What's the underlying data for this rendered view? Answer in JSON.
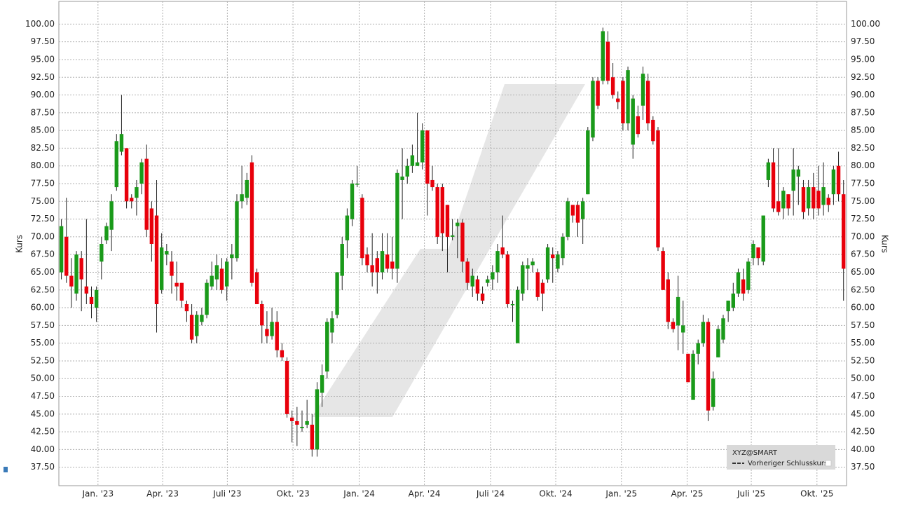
{
  "chart_data": {
    "type": "candlestick",
    "y_label": "Kurs",
    "legend": {
      "symbol": "XYZ@SMART",
      "line_label": "Vorheriger Schlusskurs",
      "position": "lower right"
    },
    "up_color": "#1a9a1a",
    "down_color": "#e8000b",
    "grid": true,
    "ylim": [
      34.9,
      103.2
    ],
    "yticks": [
      {
        "value": 37.5,
        "label": "37.50"
      },
      {
        "value": 40,
        "label": "40.00"
      },
      {
        "value": 42.5,
        "label": "42.50"
      },
      {
        "value": 45,
        "label": "45.00"
      },
      {
        "value": 47.5,
        "label": "47.50"
      },
      {
        "value": 50,
        "label": "50.00"
      },
      {
        "value": 52.5,
        "label": "52.50"
      },
      {
        "value": 55,
        "label": "55.00"
      },
      {
        "value": 57.5,
        "label": "57.50"
      },
      {
        "value": 60,
        "label": "60.00"
      },
      {
        "value": 62.5,
        "label": "62.50"
      },
      {
        "value": 65,
        "label": "65.00"
      },
      {
        "value": 67.5,
        "label": "67.50"
      },
      {
        "value": 70,
        "label": "70.00"
      },
      {
        "value": 72.5,
        "label": "72.50"
      },
      {
        "value": 75,
        "label": "75.00"
      },
      {
        "value": 77.5,
        "label": "77.50"
      },
      {
        "value": 80,
        "label": "80.00"
      },
      {
        "value": 82.5,
        "label": "82.50"
      },
      {
        "value": 85,
        "label": "85.00"
      },
      {
        "value": 87.5,
        "label": "87.50"
      },
      {
        "value": 90,
        "label": "90.00"
      },
      {
        "value": 92.5,
        "label": "92.50"
      },
      {
        "value": 95,
        "label": "95.00"
      },
      {
        "value": 97.5,
        "label": "97.50"
      },
      {
        "value": 100,
        "label": "100.00"
      }
    ],
    "xlim": [
      -0.5,
      156.6
    ],
    "xticks": [
      {
        "value": 7.3,
        "label": "Jan. '23"
      },
      {
        "value": 20.2,
        "label": "Apr. '23"
      },
      {
        "value": 33.1,
        "label": "Juli '23"
      },
      {
        "value": 46.2,
        "label": "Okt. '23"
      },
      {
        "value": 59.4,
        "label": "Jan. '24"
      },
      {
        "value": 72.4,
        "label": "Apr. '24"
      },
      {
        "value": 85.6,
        "label": "Juli '24"
      },
      {
        "value": 98.6,
        "label": "Okt. '24"
      },
      {
        "value": 111.7,
        "label": "Jan. '25"
      },
      {
        "value": 124.8,
        "label": "Apr. '25"
      },
      {
        "value": 137.6,
        "label": "Juli '25"
      },
      {
        "value": 150.7,
        "label": "Okt. '25"
      }
    ],
    "ohlc": [
      [
        65,
        72.5,
        64,
        71.5
      ],
      [
        70,
        75.5,
        63.5,
        64.5
      ],
      [
        64.5,
        67,
        60,
        63
      ],
      [
        62,
        68,
        61,
        67.5
      ],
      [
        67,
        68,
        59.5,
        64
      ],
      [
        63,
        72.5,
        60.5,
        62
      ],
      [
        61.5,
        63,
        58.5,
        60.5
      ],
      [
        60,
        63,
        58,
        62.5
      ],
      [
        66.5,
        70,
        64,
        69
      ],
      [
        69.5,
        72,
        69,
        71.5
      ],
      [
        71,
        76,
        68,
        75
      ],
      [
        77,
        84.5,
        76.5,
        83.5
      ],
      [
        82,
        90,
        81.5,
        84.5
      ],
      [
        82.5,
        82.5,
        74,
        75
      ],
      [
        75.5,
        76,
        74,
        75
      ],
      [
        75.5,
        78,
        73,
        77
      ],
      [
        77.5,
        81,
        76,
        80.5
      ],
      [
        81,
        83,
        70,
        71
      ],
      [
        74,
        75,
        66.5,
        69
      ],
      [
        73,
        78,
        56.5,
        60.5
      ],
      [
        62.5,
        70.5,
        62,
        68.5
      ],
      [
        67.5,
        69,
        66,
        68
      ],
      [
        66.5,
        68,
        62,
        64.5
      ],
      [
        63.5,
        66.5,
        61,
        63
      ],
      [
        63.5,
        63.5,
        60,
        61
      ],
      [
        60.5,
        61,
        58,
        59.5
      ],
      [
        59,
        60.5,
        55,
        55.5
      ],
      [
        56,
        59.5,
        55,
        59
      ],
      [
        58,
        60,
        57.5,
        59
      ],
      [
        59,
        64,
        58.5,
        63.5
      ],
      [
        63,
        66.5,
        62.5,
        64.5
      ],
      [
        64,
        67.5,
        62.5,
        66
      ],
      [
        65.5,
        67,
        62,
        62.5
      ],
      [
        63,
        67,
        61,
        66.5
      ],
      [
        67,
        69,
        64,
        67.5
      ],
      [
        67,
        76,
        66.5,
        75
      ],
      [
        75,
        80,
        74,
        76
      ],
      [
        75.5,
        79,
        74.5,
        78
      ],
      [
        80.5,
        81.5,
        63,
        63.5
      ],
      [
        65,
        65.5,
        60.5,
        60.5
      ],
      [
        60.5,
        61,
        55,
        57.5
      ],
      [
        57,
        59.5,
        55,
        56
      ],
      [
        56,
        60,
        55.5,
        58
      ],
      [
        58,
        59.5,
        53,
        54
      ],
      [
        54,
        55,
        52.5,
        53
      ],
      [
        52.5,
        53,
        44.5,
        45
      ],
      [
        44.5,
        45.5,
        41,
        44
      ],
      [
        44,
        46,
        40.5,
        43.5
      ],
      [
        43,
        45.5,
        42.5,
        43.2
      ],
      [
        43.5,
        47,
        43,
        44
      ],
      [
        43.5,
        45,
        39,
        40
      ],
      [
        40,
        49.5,
        39,
        48.5
      ],
      [
        48,
        52,
        46,
        50.5
      ],
      [
        51,
        58.5,
        50,
        58
      ],
      [
        56.5,
        59.5,
        55,
        58.5
      ],
      [
        59,
        65,
        58.5,
        65
      ],
      [
        64.5,
        70,
        62.5,
        69
      ],
      [
        69.5,
        74,
        67,
        73
      ],
      [
        72.5,
        78,
        71.5,
        77.5
      ],
      [
        77.5,
        80,
        77,
        77.5
      ],
      [
        75.5,
        76,
        66,
        67
      ],
      [
        67.5,
        68.5,
        65,
        66
      ],
      [
        66,
        70.5,
        63,
        65
      ],
      [
        67,
        68,
        62,
        65
      ],
      [
        65,
        70.5,
        64,
        68
      ],
      [
        67.5,
        70.5,
        65,
        65.5
      ],
      [
        66.5,
        70,
        64,
        65.5
      ],
      [
        65.5,
        79.5,
        63.5,
        79
      ],
      [
        78,
        82.5,
        72.5,
        78.5
      ],
      [
        78.5,
        81,
        77.5,
        80
      ],
      [
        80,
        83,
        79,
        81.5
      ],
      [
        80,
        87.5,
        80,
        80.5
      ],
      [
        80.5,
        86,
        79.5,
        85
      ],
      [
        85,
        85,
        73,
        77.5
      ],
      [
        78,
        80,
        76.5,
        77
      ],
      [
        77,
        77.5,
        69,
        70
      ],
      [
        77,
        77.5,
        68,
        70.5
      ],
      [
        74.5,
        74.5,
        65,
        70
      ],
      [
        70,
        72.5,
        69.5,
        70.2
      ],
      [
        71.5,
        72.5,
        67,
        72
      ],
      [
        72,
        72.5,
        65,
        66.5
      ],
      [
        66.5,
        67,
        62.5,
        63.5
      ],
      [
        63,
        65.5,
        61.5,
        64.5
      ],
      [
        64,
        64.5,
        61,
        62
      ],
      [
        62,
        63,
        60.5,
        61
      ],
      [
        63.5,
        64.5,
        63,
        64
      ],
      [
        64,
        66,
        62.5,
        65
      ],
      [
        65,
        69,
        63.5,
        68
      ],
      [
        68.5,
        73,
        67,
        67.5
      ],
      [
        67.5,
        68,
        60,
        60.5
      ],
      [
        60.5,
        61,
        58,
        60.5
      ],
      [
        55,
        63,
        55,
        62.5
      ],
      [
        62,
        66.5,
        61,
        66
      ],
      [
        65.5,
        67,
        62.5,
        66
      ],
      [
        66,
        67,
        65,
        66.5
      ],
      [
        65,
        65.5,
        61,
        61.5
      ],
      [
        63.5,
        64,
        59.5,
        62
      ],
      [
        64,
        69,
        63.5,
        68.5
      ],
      [
        67.5,
        68.5,
        63.5,
        67
      ],
      [
        65.5,
        68,
        65,
        67.5
      ],
      [
        67,
        70.5,
        66,
        70
      ],
      [
        70,
        75.5,
        69.5,
        75
      ],
      [
        74.5,
        74.5,
        72,
        73
      ],
      [
        74.5,
        75,
        70,
        72
      ],
      [
        72.5,
        75.5,
        69,
        75
      ],
      [
        76,
        85.5,
        76,
        85
      ],
      [
        84,
        92.5,
        83.5,
        92
      ],
      [
        92,
        92.5,
        88,
        88.5
      ],
      [
        92,
        99.5,
        91.5,
        99
      ],
      [
        97.5,
        99,
        91.5,
        92
      ],
      [
        92.5,
        94.5,
        89.5,
        90
      ],
      [
        89.5,
        90.5,
        88,
        89
      ],
      [
        92,
        92.5,
        85,
        86
      ],
      [
        86,
        94,
        85,
        93.5
      ],
      [
        83,
        90,
        81,
        89.5
      ],
      [
        87,
        88.5,
        84,
        84.5
      ],
      [
        88.5,
        94,
        86.5,
        93
      ],
      [
        92,
        93,
        85,
        86
      ],
      [
        86.5,
        87,
        83,
        83.5
      ],
      [
        85,
        85.5,
        68,
        68.5
      ],
      [
        68,
        68.5,
        62.5,
        62.5
      ],
      [
        64,
        65,
        57,
        58
      ],
      [
        58,
        58.5,
        56.5,
        57
      ],
      [
        57.5,
        64.5,
        54,
        61.5
      ],
      [
        56.5,
        61,
        53.5,
        57.5
      ],
      [
        53.5,
        53.5,
        49.5,
        49.5
      ],
      [
        47,
        54,
        47,
        53.5
      ],
      [
        53.5,
        55.5,
        52,
        55
      ],
      [
        55,
        59,
        54.5,
        58
      ],
      [
        58,
        58.5,
        44,
        45.5
      ],
      [
        46,
        51,
        45.5,
        50
      ],
      [
        53,
        57.5,
        53,
        57
      ],
      [
        55.5,
        59,
        55,
        58.5
      ],
      [
        59.5,
        61,
        58,
        61
      ],
      [
        60,
        63.5,
        59.5,
        62
      ],
      [
        62,
        65.5,
        61.5,
        65
      ],
      [
        64,
        65.5,
        61,
        62
      ],
      [
        62.5,
        67,
        62,
        66.5
      ],
      [
        67,
        69.5,
        66,
        69
      ],
      [
        68.5,
        68.5,
        66,
        67
      ],
      [
        66.5,
        73,
        66,
        73
      ],
      [
        78,
        81,
        77,
        80.5
      ],
      [
        80.5,
        82.5,
        73.5,
        74
      ],
      [
        75,
        82.5,
        73,
        73.5
      ],
      [
        74,
        77,
        72.5,
        76.5
      ],
      [
        76,
        76,
        73,
        74
      ],
      [
        76.5,
        82.5,
        73,
        79.5
      ],
      [
        78.5,
        80,
        74.5,
        79.5
      ],
      [
        77,
        78,
        72.5,
        73.5
      ],
      [
        74,
        78,
        73,
        77
      ],
      [
        77,
        79,
        72.5,
        74
      ],
      [
        76.5,
        80,
        73,
        74
      ],
      [
        74.5,
        80.5,
        73,
        77
      ],
      [
        75.5,
        76,
        73.5,
        74.5
      ],
      [
        76,
        80,
        74.5,
        79.5
      ],
      [
        80,
        82,
        75,
        76
      ],
      [
        76,
        78,
        61,
        65.5
      ]
    ]
  }
}
